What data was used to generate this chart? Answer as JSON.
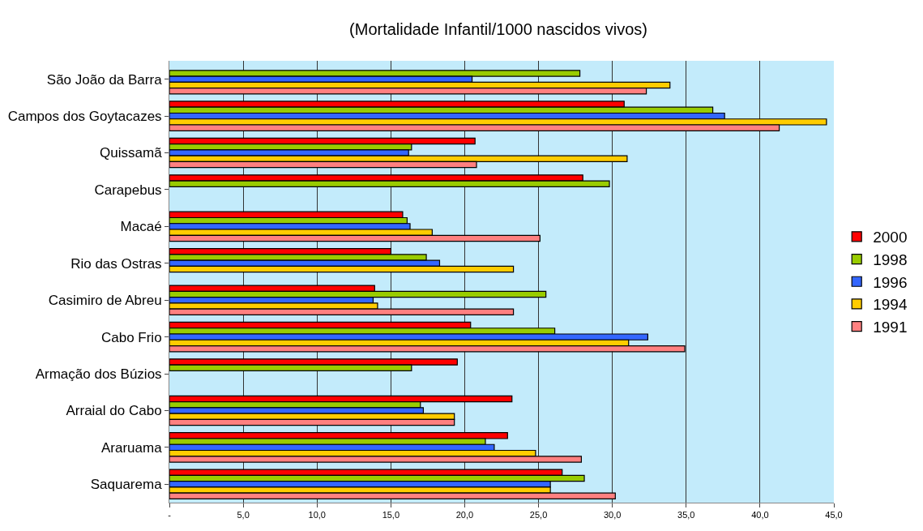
{
  "chart_data": {
    "type": "bar",
    "orientation": "horizontal",
    "title": "(Mortalidade Infantil/1000 nascidos vivos)",
    "categories": [
      "São João da Barra",
      "Campos dos Goytacazes",
      "Quissamã",
      "Carapebus",
      "Macaé",
      "Rio das Ostras",
      "Casimiro de Abreu",
      "Cabo Frio",
      "Armação dos Búzios",
      "Arraial do Cabo",
      "Araruama",
      "Saquarema"
    ],
    "series": [
      {
        "name": "2000",
        "color": "#ff0000",
        "values": [
          null,
          30.8,
          20.7,
          28.0,
          15.8,
          15.0,
          13.9,
          20.4,
          19.5,
          23.2,
          22.9,
          26.6
        ]
      },
      {
        "name": "1998",
        "color": "#99cc00",
        "values": [
          27.8,
          36.8,
          16.4,
          29.8,
          16.1,
          17.4,
          25.5,
          26.1,
          16.4,
          17.0,
          21.4,
          28.1
        ]
      },
      {
        "name": "1996",
        "color": "#3366ff",
        "values": [
          20.5,
          37.6,
          16.2,
          null,
          16.3,
          18.3,
          13.8,
          32.4,
          null,
          17.2,
          22.0,
          25.8
        ]
      },
      {
        "name": "1994",
        "color": "#ffcc00",
        "values": [
          33.9,
          44.5,
          31.0,
          null,
          17.8,
          23.3,
          14.1,
          31.1,
          null,
          19.3,
          24.8,
          25.8
        ]
      },
      {
        "name": "1991",
        "color": "#ff8080",
        "values": [
          32.3,
          41.3,
          20.8,
          null,
          25.1,
          null,
          23.3,
          34.9,
          null,
          19.3,
          27.9,
          30.2
        ]
      }
    ],
    "xlim": [
      0,
      45
    ],
    "xticks": [
      {
        "value": 0,
        "label": "-"
      },
      {
        "value": 5,
        "label": "5,0"
      },
      {
        "value": 10,
        "label": "10,0"
      },
      {
        "value": 15,
        "label": "15,0"
      },
      {
        "value": 20,
        "label": "20,0"
      },
      {
        "value": 25,
        "label": "25,0"
      },
      {
        "value": 30,
        "label": "30,0"
      },
      {
        "value": 35,
        "label": "35,0"
      },
      {
        "value": 40,
        "label": "40,0"
      },
      {
        "value": 45,
        "label": "45,0"
      }
    ],
    "grid": "x",
    "legend": "right"
  }
}
